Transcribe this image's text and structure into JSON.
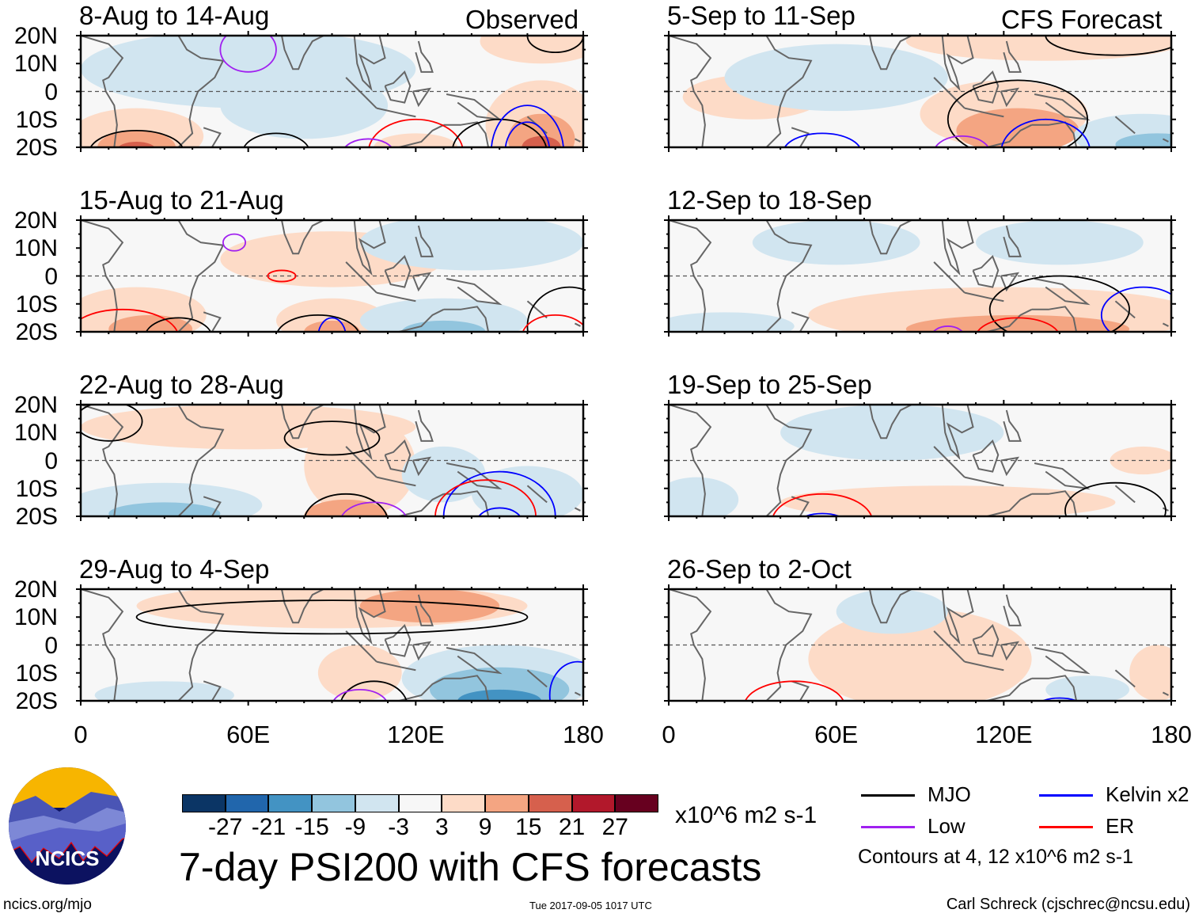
{
  "title": "7-day PSI200 with CFS forecasts",
  "left_header": "Observed",
  "right_header": "CFS Forecast",
  "lat_labels": [
    "20N",
    "10N",
    "0",
    "10S",
    "20S"
  ],
  "lon_labels": [
    "0",
    "60E",
    "120E",
    "180"
  ],
  "colorbar": {
    "colors": [
      "#0b3565",
      "#2166ac",
      "#4393c3",
      "#92c5de",
      "#d1e5f0",
      "#f7f7f7",
      "#fddbc7",
      "#f4a582",
      "#d6604d",
      "#b2182b",
      "#67001f"
    ],
    "labels": [
      "-27",
      "-21",
      "-15",
      "-9",
      "-3",
      "3",
      "9",
      "15",
      "21",
      "27"
    ],
    "units": "x10^6 m2 s-1"
  },
  "legend": {
    "items": [
      {
        "label": "MJO",
        "color": "#000000"
      },
      {
        "label": "Kelvin x2",
        "color": "#0000ff"
      },
      {
        "label": "Low",
        "color": "#a020f0"
      },
      {
        "label": "ER",
        "color": "#ff0000"
      }
    ],
    "note": "Contours at 4, 12 x10^6 m2 s-1"
  },
  "logo_text": "NCICS",
  "footer": {
    "url": "ncics.org/mjo",
    "timestamp": "Tue 2017-09-05 1017 UTC",
    "author": "Carl Schreck (cjschrec@ncsu.edu)"
  },
  "chart_data": {
    "type": "heatmap",
    "xlim": [
      0,
      180
    ],
    "ylim": [
      -20,
      20
    ],
    "panels": [
      {
        "title": "8-Aug to 14-Aug",
        "blobs": [
          [
            60,
            8,
            60,
            14,
            -5
          ],
          [
            80,
            -5,
            30,
            12,
            -5
          ],
          [
            20,
            -16,
            24,
            10,
            5
          ],
          [
            20,
            -20,
            14,
            6,
            12
          ],
          [
            20,
            -21,
            7,
            3,
            18
          ],
          [
            165,
            -12,
            20,
            16,
            5
          ],
          [
            165,
            -17,
            12,
            9,
            12
          ],
          [
            165,
            -20,
            7,
            4,
            18
          ],
          [
            165,
            18,
            22,
            8,
            5
          ],
          [
            120,
            -20,
            15,
            5,
            5
          ]
        ],
        "contours": [
          [
            "low",
            60,
            15,
            10,
            8
          ],
          [
            "mjo",
            20,
            -22,
            17,
            8
          ],
          [
            "mjo",
            70,
            -22,
            12,
            7
          ],
          [
            "er",
            120,
            -22,
            17,
            12
          ],
          [
            "low",
            103,
            -22,
            9,
            5
          ],
          [
            "mjo",
            150,
            -22,
            17,
            12
          ],
          [
            "kelvin",
            160,
            -22,
            13,
            17
          ],
          [
            "kelvin",
            160,
            -22,
            8,
            11
          ],
          [
            "mjo",
            170,
            20,
            10,
            6
          ]
        ]
      },
      {
        "title": "5-Sep to 11-Sep",
        "blobs": [
          [
            30,
            -2,
            25,
            8,
            5
          ],
          [
            120,
            -8,
            30,
            12,
            5
          ],
          [
            125,
            -14,
            22,
            8,
            12
          ],
          [
            135,
            18,
            50,
            7,
            5
          ],
          [
            170,
            -16,
            25,
            8,
            -5
          ],
          [
            175,
            -19,
            15,
            4,
            -12
          ],
          [
            60,
            5,
            40,
            12,
            -5
          ]
        ],
        "contours": [
          [
            "mjo",
            125,
            -10,
            25,
            14
          ],
          [
            "kelvin",
            55,
            -22,
            14,
            7
          ],
          [
            "kelvin",
            135,
            -22,
            16,
            12
          ],
          [
            "low",
            105,
            -22,
            10,
            6
          ],
          [
            "mjo",
            160,
            20,
            25,
            7
          ]
        ]
      },
      {
        "title": "15-Aug to 21-Aug",
        "blobs": [
          [
            90,
            6,
            40,
            10,
            5
          ],
          [
            20,
            -14,
            25,
            10,
            5
          ],
          [
            25,
            -19,
            15,
            5,
            12
          ],
          [
            90,
            -16,
            20,
            8,
            5
          ],
          [
            90,
            -20,
            10,
            4,
            12
          ],
          [
            140,
            12,
            40,
            10,
            -5
          ],
          [
            130,
            -16,
            30,
            8,
            -5
          ],
          [
            130,
            -20,
            15,
            4,
            -12
          ]
        ],
        "contours": [
          [
            "low",
            55,
            12,
            4,
            3
          ],
          [
            "er",
            72,
            0,
            5,
            2
          ],
          [
            "er",
            15,
            -22,
            20,
            10
          ],
          [
            "mjo",
            35,
            -22,
            12,
            7
          ],
          [
            "mjo",
            85,
            -22,
            15,
            8
          ],
          [
            "kelvin",
            90,
            -22,
            5,
            7
          ],
          [
            "mjo",
            175,
            -18,
            15,
            14
          ],
          [
            "er",
            170,
            -22,
            12,
            8
          ]
        ]
      },
      {
        "title": "12-Sep to 18-Sep",
        "blobs": [
          [
            120,
            -14,
            70,
            10,
            5
          ],
          [
            125,
            -19,
            40,
            5,
            12
          ],
          [
            60,
            12,
            30,
            8,
            -5
          ],
          [
            20,
            -18,
            25,
            5,
            -5
          ],
          [
            140,
            12,
            30,
            8,
            -5
          ]
        ],
        "contours": [
          [
            "mjo",
            140,
            -12,
            25,
            12
          ],
          [
            "er",
            125,
            -22,
            15,
            7
          ],
          [
            "kelvin",
            170,
            -14,
            15,
            10
          ],
          [
            "low",
            100,
            -22,
            6,
            4
          ]
        ]
      },
      {
        "title": "22-Aug to 28-Aug",
        "blobs": [
          [
            60,
            12,
            60,
            8,
            5
          ],
          [
            100,
            -2,
            20,
            18,
            5
          ],
          [
            95,
            -20,
            15,
            6,
            12
          ],
          [
            30,
            -16,
            35,
            8,
            -5
          ],
          [
            30,
            -19,
            20,
            4,
            -12
          ],
          [
            130,
            -5,
            15,
            10,
            -5
          ],
          [
            160,
            -12,
            20,
            10,
            -5
          ]
        ],
        "contours": [
          [
            "mjo",
            10,
            14,
            12,
            7
          ],
          [
            "mjo",
            90,
            8,
            17,
            6
          ],
          [
            "mjo",
            95,
            -22,
            15,
            10
          ],
          [
            "low",
            105,
            -22,
            12,
            7
          ],
          [
            "kelvin",
            150,
            -20,
            20,
            16
          ],
          [
            "er",
            145,
            -20,
            18,
            13
          ],
          [
            "kelvin",
            150,
            -22,
            8,
            5
          ]
        ]
      },
      {
        "title": "19-Sep to 25-Sep",
        "blobs": [
          [
            80,
            10,
            40,
            10,
            -5
          ],
          [
            10,
            -14,
            15,
            8,
            -5
          ],
          [
            100,
            -15,
            60,
            6,
            5
          ],
          [
            170,
            0,
            12,
            5,
            5
          ]
        ],
        "contours": [
          [
            "er",
            55,
            -22,
            18,
            10
          ],
          [
            "kelvin",
            55,
            -22,
            8,
            3
          ],
          [
            "mjo",
            160,
            -18,
            18,
            10
          ]
        ]
      },
      {
        "title": "29-Aug to 4-Sep",
        "blobs": [
          [
            90,
            14,
            70,
            8,
            5
          ],
          [
            125,
            14,
            25,
            6,
            12
          ],
          [
            100,
            -10,
            15,
            10,
            5
          ],
          [
            150,
            -12,
            35,
            12,
            -5
          ],
          [
            150,
            -16,
            25,
            8,
            -12
          ],
          [
            150,
            -20,
            15,
            4,
            -18
          ],
          [
            30,
            -18,
            25,
            5,
            -5
          ]
        ],
        "contours": [
          [
            "mjo",
            90,
            10,
            70,
            6
          ],
          [
            "mjo",
            105,
            -22,
            12,
            9
          ],
          [
            "low",
            100,
            -22,
            10,
            6
          ],
          [
            "kelvin",
            178,
            -18,
            10,
            12
          ]
        ]
      },
      {
        "title": "26-Sep to 2-Oct",
        "blobs": [
          [
            90,
            -5,
            40,
            18,
            5
          ],
          [
            80,
            12,
            20,
            8,
            -5
          ],
          [
            175,
            -10,
            10,
            10,
            5
          ],
          [
            150,
            -16,
            15,
            5,
            -5
          ]
        ],
        "contours": [
          [
            "er",
            45,
            -22,
            18,
            9
          ],
          [
            "kelvin",
            140,
            -22,
            8,
            3
          ]
        ]
      }
    ]
  }
}
